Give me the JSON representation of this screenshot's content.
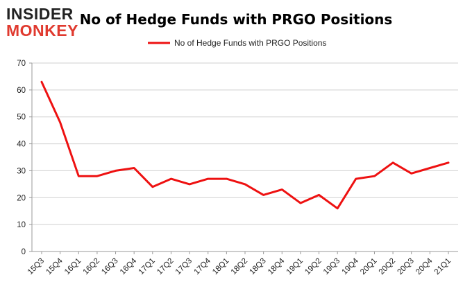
{
  "logo": {
    "line1": "INSIDER",
    "line2": "MONKEY",
    "color1": "#222222",
    "color2": "#e03a2f"
  },
  "chart_data": {
    "type": "line",
    "title": "No of Hedge Funds with PRGO Positions",
    "xlabel": "",
    "ylabel": "",
    "ylim": [
      0,
      70
    ],
    "yticks": [
      0,
      10,
      20,
      30,
      40,
      50,
      60,
      70
    ],
    "grid": true,
    "legend_position": "top-center",
    "categories": [
      "15Q3",
      "15Q4",
      "16Q1",
      "16Q2",
      "16Q3",
      "16Q4",
      "17Q1",
      "17Q2",
      "17Q3",
      "17Q4",
      "18Q1",
      "18Q2",
      "18Q3",
      "18Q4",
      "19Q1",
      "19Q2",
      "19Q3",
      "19Q4",
      "20Q1",
      "20Q2",
      "20Q3",
      "20Q4",
      "21Q1"
    ],
    "series": [
      {
        "name": "No of Hedge Funds with PRGO Positions",
        "color": "#ee1111",
        "values": [
          63,
          48,
          28,
          28,
          30,
          31,
          24,
          27,
          25,
          27,
          27,
          25,
          21,
          23,
          18,
          21,
          16,
          27,
          28,
          33,
          29,
          31,
          33
        ]
      }
    ]
  }
}
